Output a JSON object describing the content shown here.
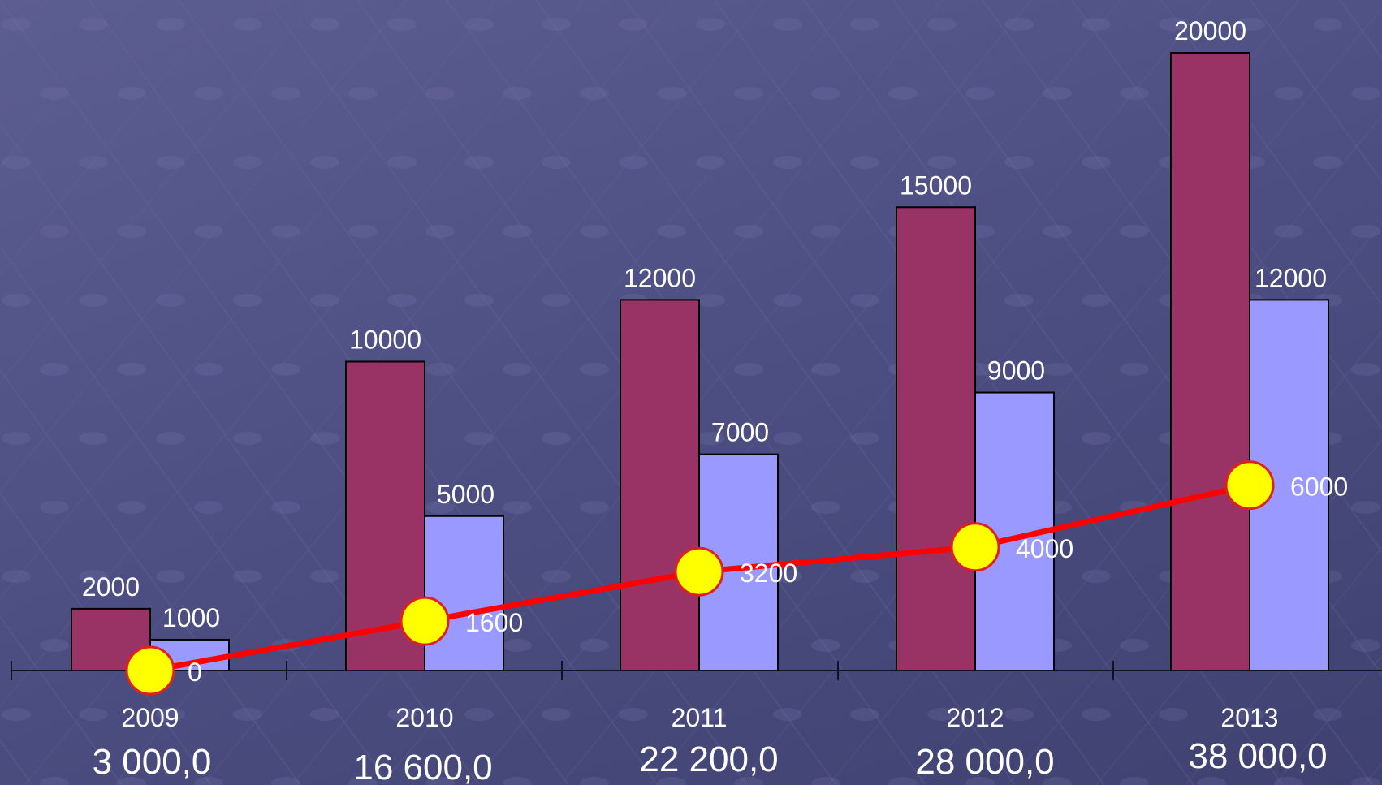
{
  "chart_data": {
    "type": "bar",
    "title": "",
    "xlabel": "",
    "ylabel": "",
    "categories": [
      "2009",
      "2010",
      "2011",
      "2012",
      "2013"
    ],
    "series": [
      {
        "kind": "bar",
        "color": "#993366",
        "values": [
          2000,
          10000,
          12000,
          15000,
          20000
        ],
        "labels": [
          "2000",
          "10000",
          "12000",
          "15000",
          "20000"
        ]
      },
      {
        "kind": "bar",
        "color": "#9999ff",
        "values": [
          1000,
          5000,
          7000,
          9000,
          12000
        ],
        "labels": [
          "1000",
          "5000",
          "7000",
          "9000",
          "12000"
        ]
      },
      {
        "kind": "line",
        "color": "#ff0000",
        "marker_color": "#ffff00",
        "values": [
          0,
          1600,
          3200,
          4000,
          6000
        ],
        "labels": [
          "0",
          "1600",
          "3200",
          "4000",
          "6000"
        ]
      }
    ],
    "totals": [
      "3 000,0",
      "16 600,0",
      "22 200,0",
      "28 000,0",
      "38 000,0"
    ],
    "ylim": [
      0,
      20000
    ],
    "grid": false,
    "legend": "none"
  }
}
